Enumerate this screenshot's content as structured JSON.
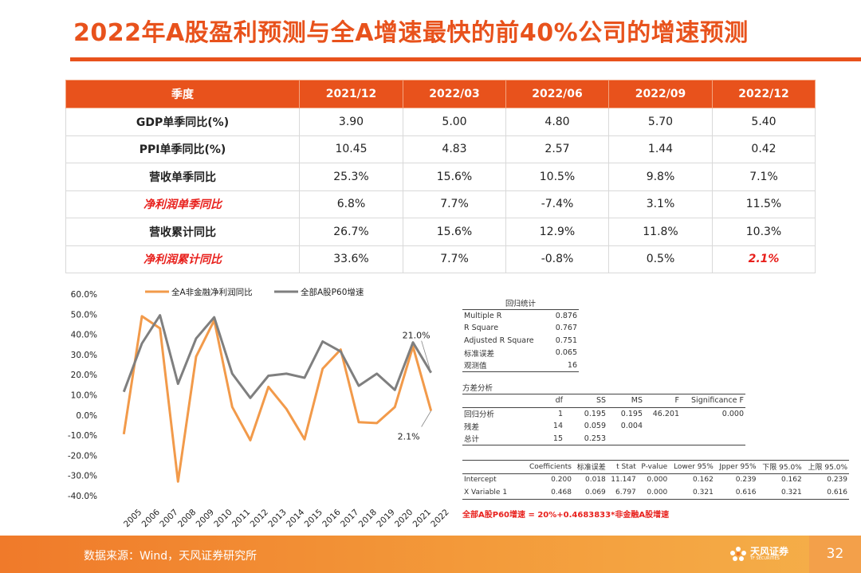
{
  "page": {
    "title": "2022年A股盈利预测与全A增速最快的前40%公司的增速预测",
    "source": "数据来源：Wind，天风证券研究所",
    "page_number": "32",
    "logo_name": "天风证券",
    "logo_sub": "TF SECURITIES"
  },
  "colors": {
    "accent": "#e8521c",
    "highlight": "#e8201c",
    "series1": "#f29a4a",
    "series2": "#7f7f7f"
  },
  "table": {
    "headers": [
      "季度",
      "2021/12",
      "2022/03",
      "2022/06",
      "2022/09",
      "2022/12"
    ],
    "rows": [
      {
        "label": "GDP单季同比(%)",
        "values": [
          "3.90",
          "5.00",
          "4.80",
          "5.70",
          "5.40"
        ]
      },
      {
        "label": "PPI单季同比(%)",
        "values": [
          "10.45",
          "4.83",
          "2.57",
          "1.44",
          "0.42"
        ]
      },
      {
        "label": "营收单季同比",
        "values": [
          "25.3%",
          "15.6%",
          "10.5%",
          "9.8%",
          "7.1%"
        ]
      },
      {
        "label": "净利润单季同比",
        "values": [
          "6.8%",
          "7.7%",
          "-7.4%",
          "3.1%",
          "11.5%"
        ]
      },
      {
        "label": "营收累计同比",
        "values": [
          "26.7%",
          "15.6%",
          "12.9%",
          "11.8%",
          "10.3%"
        ]
      },
      {
        "label": "净利润累计同比",
        "values": [
          "33.6%",
          "7.7%",
          "-0.8%",
          "0.5%",
          "2.1%"
        ]
      }
    ]
  },
  "chart_data": {
    "type": "line",
    "categories": [
      "2005",
      "2006",
      "2007",
      "2008",
      "2009",
      "2010",
      "2011",
      "2012",
      "2013",
      "2014",
      "2015",
      "2016",
      "2017",
      "2018",
      "2019",
      "2020",
      "2021",
      "2022"
    ],
    "series": [
      {
        "name": "全A非金融净利润同比",
        "values": [
          -9.5,
          49,
          43,
          -33,
          29,
          47,
          4,
          -12.5,
          14,
          3,
          -12,
          23,
          32.5,
          -3.5,
          -4,
          4,
          34,
          2.1
        ]
      },
      {
        "name": "全部A股P60增速",
        "values": [
          11.5,
          35.5,
          49.5,
          15.5,
          38,
          48.5,
          20.5,
          8.5,
          19.5,
          20.5,
          18.5,
          36.5,
          31.5,
          14.5,
          20.5,
          12.5,
          36,
          21
        ]
      }
    ],
    "annotations": [
      "21.0%",
      "2.1%"
    ],
    "yticks": [
      "60.0%",
      "50.0%",
      "40.0%",
      "30.0%",
      "20.0%",
      "10.0%",
      "0.0%",
      "-10.0%",
      "-20.0%",
      "-30.0%",
      "-40.0%"
    ],
    "ylim": [
      -40,
      60
    ]
  },
  "regression": {
    "stats_title": "回归统计",
    "stats": [
      {
        "label": "Multiple R",
        "value": "0.876"
      },
      {
        "label": "R Square",
        "value": "0.767"
      },
      {
        "label": "Adjusted R Square",
        "value": "0.751"
      },
      {
        "label": "标准误差",
        "value": "0.065"
      },
      {
        "label": "观测值",
        "value": "16"
      }
    ],
    "anova_title": "方差分析",
    "anova_headers": [
      "",
      "df",
      "SS",
      "MS",
      "F",
      "Significance F"
    ],
    "anova_rows": [
      [
        "回归分析",
        "1",
        "0.195",
        "0.195",
        "46.201",
        "0.000"
      ],
      [
        "残差",
        "14",
        "0.059",
        "0.004",
        "",
        ""
      ],
      [
        "总计",
        "15",
        "0.253",
        "",
        "",
        ""
      ]
    ],
    "coef_headers": [
      "",
      "Coefficients",
      "标准误差",
      "t Stat",
      "P-value",
      "Lower 95%",
      "Jpper 95%",
      "下限 95.0%",
      "上限 95.0%"
    ],
    "coef_rows": [
      [
        "Intercept",
        "0.200",
        "0.018",
        "11.147",
        "0.000",
        "0.162",
        "0.239",
        "0.162",
        "0.239"
      ],
      [
        "X Variable 1",
        "0.468",
        "0.069",
        "6.797",
        "0.000",
        "0.321",
        "0.616",
        "0.321",
        "0.616"
      ]
    ],
    "formula": "全部A股P60增速 = 20%+0.4683833*非金融A股增速"
  }
}
